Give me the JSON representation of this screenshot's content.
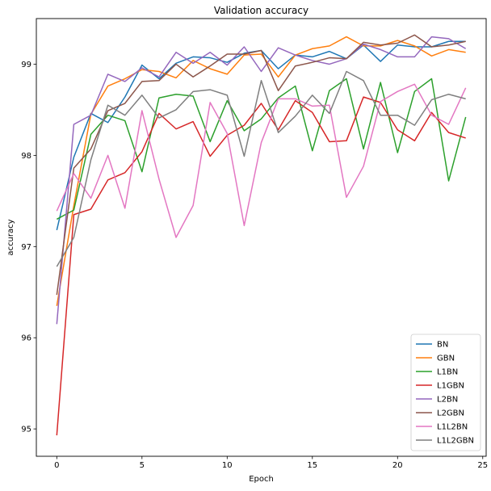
{
  "chart_data": {
    "type": "line",
    "title": "Validation accuracy",
    "xlabel": "Epoch",
    "ylabel": "accuracy",
    "x": [
      0,
      1,
      2,
      3,
      4,
      5,
      6,
      7,
      8,
      9,
      10,
      11,
      12,
      13,
      14,
      15,
      16,
      17,
      18,
      19,
      20,
      21,
      22,
      23,
      24
    ],
    "xlim": [
      -1.2,
      25.2
    ],
    "ylim": [
      94.7,
      99.5
    ],
    "xticks": [
      0,
      5,
      10,
      15,
      20,
      25
    ],
    "yticks": [
      95,
      96,
      97,
      98,
      99
    ],
    "grid": false,
    "legend_position": "lower-right",
    "series": [
      {
        "name": "BN",
        "color": "#1f77b4",
        "values": [
          97.18,
          97.98,
          98.46,
          98.36,
          98.64,
          98.99,
          98.84,
          99.01,
          99.08,
          99.07,
          99.02,
          99.12,
          99.15,
          98.95,
          99.1,
          99.08,
          99.14,
          99.06,
          99.21,
          99.03,
          99.21,
          99.19,
          99.19,
          99.25,
          99.25
        ]
      },
      {
        "name": "GBN",
        "color": "#ff7f0e",
        "values": [
          96.35,
          97.45,
          98.45,
          98.76,
          98.84,
          98.94,
          98.92,
          98.85,
          99.04,
          98.95,
          98.89,
          99.1,
          99.11,
          98.86,
          99.1,
          99.17,
          99.2,
          99.3,
          99.2,
          99.2,
          99.26,
          99.2,
          99.09,
          99.16,
          99.13
        ]
      },
      {
        "name": "L1BN",
        "color": "#2ca02c",
        "values": [
          97.3,
          97.4,
          98.23,
          98.44,
          98.38,
          97.82,
          98.63,
          98.67,
          98.65,
          98.15,
          98.6,
          98.27,
          98.4,
          98.63,
          98.76,
          98.05,
          98.71,
          98.84,
          98.07,
          98.8,
          98.03,
          98.7,
          98.84,
          97.72,
          98.42
        ]
      },
      {
        "name": "L1GBN",
        "color": "#d62728",
        "values": [
          94.93,
          97.35,
          97.41,
          97.73,
          97.81,
          98.04,
          98.46,
          98.29,
          98.37,
          97.99,
          98.22,
          98.33,
          98.57,
          98.28,
          98.6,
          98.47,
          98.15,
          98.16,
          98.64,
          98.58,
          98.28,
          98.16,
          98.47,
          98.25,
          98.19
        ]
      },
      {
        "name": "L2BN",
        "color": "#9467bd",
        "values": [
          96.15,
          98.34,
          98.44,
          98.89,
          98.81,
          98.96,
          98.86,
          99.13,
          99.01,
          99.13,
          98.99,
          99.19,
          98.92,
          99.18,
          99.1,
          99.04,
          99.0,
          99.06,
          99.22,
          99.16,
          99.08,
          99.08,
          99.3,
          99.28,
          99.17
        ]
      },
      {
        "name": "L2GBN",
        "color": "#8c564b",
        "values": [
          96.47,
          97.86,
          98.07,
          98.49,
          98.57,
          98.81,
          98.82,
          99.0,
          98.86,
          98.98,
          99.11,
          99.11,
          99.15,
          98.71,
          98.98,
          99.02,
          99.07,
          99.06,
          99.24,
          99.21,
          99.23,
          99.32,
          99.19,
          99.21,
          99.25
        ]
      },
      {
        "name": "L1L2BN",
        "color": "#e377c2",
        "values": [
          97.39,
          97.8,
          97.53,
          98.0,
          97.42,
          98.49,
          97.74,
          97.1,
          97.45,
          98.58,
          98.24,
          97.23,
          98.14,
          98.62,
          98.62,
          98.54,
          98.55,
          97.54,
          97.88,
          98.59,
          98.7,
          98.78,
          98.44,
          98.34,
          98.74
        ]
      },
      {
        "name": "L1L2GBN",
        "color": "#7f7f7f",
        "values": [
          96.78,
          97.1,
          97.95,
          98.55,
          98.44,
          98.66,
          98.41,
          98.5,
          98.7,
          98.72,
          98.66,
          97.99,
          98.82,
          98.25,
          98.43,
          98.66,
          98.46,
          98.92,
          98.82,
          98.44,
          98.44,
          98.33,
          98.61,
          98.67,
          98.62
        ]
      }
    ]
  }
}
